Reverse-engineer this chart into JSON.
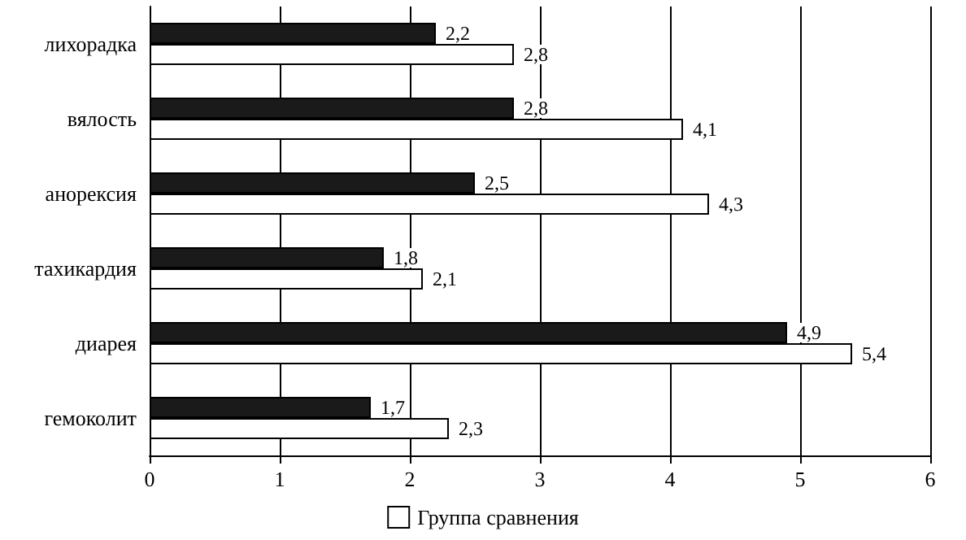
{
  "chart_data": {
    "type": "bar",
    "orientation": "horizontal",
    "categories": [
      "лихорадка",
      "вялость",
      "анорексия",
      "тахикардия",
      "диарея",
      "гемоколит"
    ],
    "series": [
      {
        "color": "#1a1a1a",
        "values": [
          2.2,
          2.8,
          2.5,
          1.8,
          4.9,
          1.7
        ],
        "value_labels": [
          "2,2",
          "2,8",
          "2,5",
          "1,8",
          "4,9",
          "1,7"
        ]
      },
      {
        "name": "Группа сравнения",
        "color": "#ffffff",
        "values": [
          2.8,
          4.1,
          4.3,
          2.1,
          5.4,
          2.3
        ],
        "value_labels": [
          "2,8",
          "4,1",
          "4,3",
          "2,1",
          "5,4",
          "2,3"
        ]
      }
    ],
    "xlim": [
      0,
      6
    ],
    "xticks": [
      0,
      1,
      2,
      3,
      4,
      5,
      6
    ],
    "grid": "x",
    "legend": "bottom"
  }
}
